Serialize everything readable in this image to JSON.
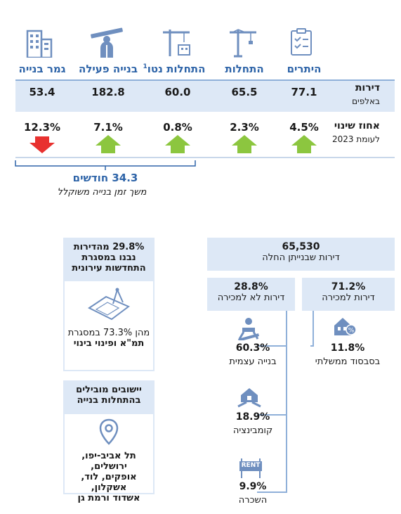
{
  "colors": {
    "header_blue": "#2e64a8",
    "up_green": "#8cc63f",
    "down_red": "#e8312f",
    "band": "#dde8f6",
    "line": "#8fb0d9"
  },
  "chart_data": {
    "type": "table",
    "columns": [
      "היתרים",
      "התחלות",
      "התחלות נטו",
      "בנייה פעילה",
      "גמר בנייה"
    ],
    "header_superscript": "1",
    "icons": [
      "permits-clipboard-icon",
      "crane-icon",
      "net-crane-icon",
      "worker-beam-icon",
      "building-icon"
    ],
    "rows": [
      {
        "label": "דירות",
        "sublabel": "באלפים",
        "values": [
          "77.1",
          "65.5",
          "60.0",
          "182.8",
          "53.4"
        ]
      },
      {
        "label": "אחוז שינוי",
        "sublabel": "לעומת 2023",
        "values": [
          "4.5%",
          "2.3%",
          "0.8%",
          "7.1%",
          "12.3%"
        ],
        "directions": [
          "up",
          "up",
          "up",
          "up",
          "down"
        ]
      }
    ],
    "duration": {
      "value": "34.3 חודשים",
      "label": "משך זמן בנייה משוקלל"
    }
  },
  "right_panel": {
    "total": {
      "value": "65,530",
      "label": "דירות שבנייתן החלה"
    },
    "for_sale": {
      "value": "71.2%",
      "label": "דירות למכירה"
    },
    "not_for_sale": {
      "value": "28.8%",
      "label": "דירות לא למכירה"
    },
    "subsidized": {
      "value": "11.8%",
      "label": "בסבסוד ממשלתי",
      "icon": "house-discount-icon"
    },
    "self_build": {
      "value": "60.3%",
      "label": "בנייה עצמית",
      "icon": "builder-icon"
    },
    "combination": {
      "value": "18.9%",
      "label": "קומבינציה",
      "icon": "house-handshake-icon"
    },
    "rental": {
      "value": "9.9%",
      "label": "השכרה",
      "icon": "rent-sign-icon",
      "sign_text": "RENT"
    }
  },
  "left_panel": {
    "urban": {
      "title_line1": "29.8% מהדירות",
      "title_line2": "נבנו במסגרת",
      "title_line3": "התחדשות עירונית",
      "note_line1": "מהן 73.3% במסגרת",
      "note_line2": "תמ\"א ופינוי בינוי",
      "icon": "blueprint-icon"
    },
    "leading": {
      "title_line1": "יישובים מובילים",
      "title_line2": "בהתחלות בנייה",
      "icon": "location-pin-icon",
      "cities_line1": "תל אביב-יפו, ירושלים,",
      "cities_line2": "אופקים, לוד, אשקלון,",
      "cities_line3": "אשדוד ורמת גן"
    }
  }
}
